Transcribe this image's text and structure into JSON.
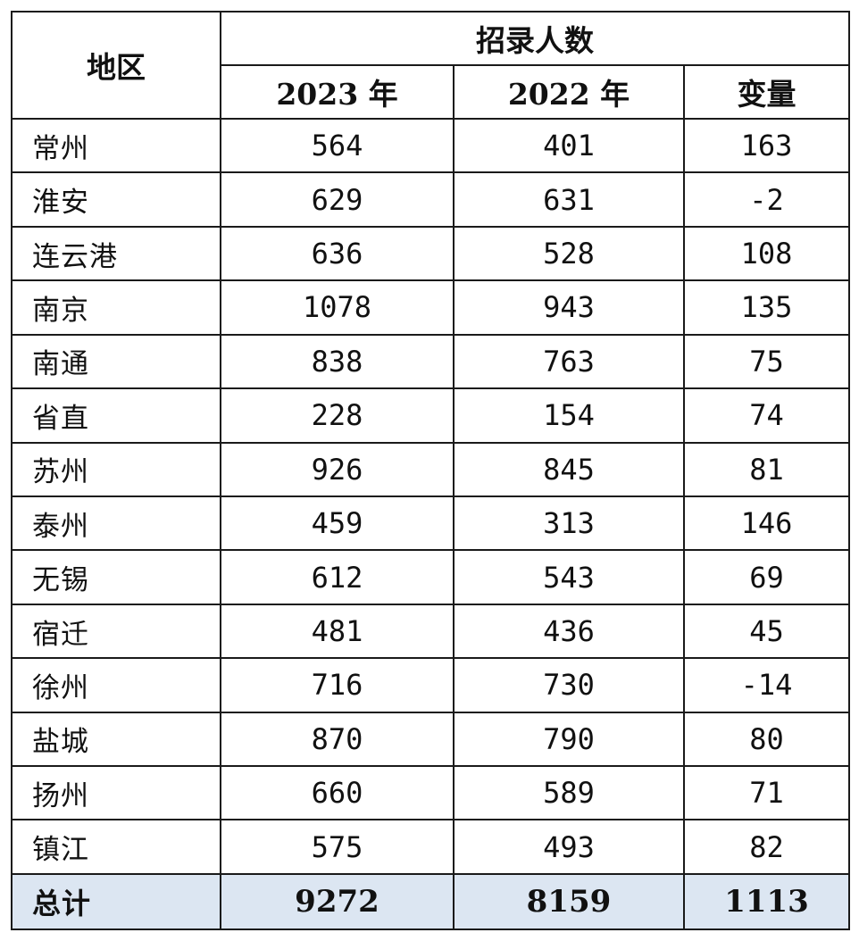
{
  "table": {
    "header": {
      "region": "地区",
      "group": "招录人数",
      "year2023": "2023 年",
      "year2022": "2022 年",
      "change": "变量"
    },
    "rows": [
      {
        "region": "常州",
        "y2023": "564",
        "y2022": "401",
        "change": "163"
      },
      {
        "region": "淮安",
        "y2023": "629",
        "y2022": "631",
        "change": "-2"
      },
      {
        "region": "连云港",
        "y2023": "636",
        "y2022": "528",
        "change": "108"
      },
      {
        "region": "南京",
        "y2023": "1078",
        "y2022": "943",
        "change": "135"
      },
      {
        "region": "南通",
        "y2023": "838",
        "y2022": "763",
        "change": "75"
      },
      {
        "region": "省直",
        "y2023": "228",
        "y2022": "154",
        "change": "74"
      },
      {
        "region": "苏州",
        "y2023": "926",
        "y2022": "845",
        "change": "81"
      },
      {
        "region": "泰州",
        "y2023": "459",
        "y2022": "313",
        "change": "146"
      },
      {
        "region": "无锡",
        "y2023": "612",
        "y2022": "543",
        "change": "69"
      },
      {
        "region": "宿迁",
        "y2023": "481",
        "y2022": "436",
        "change": "45"
      },
      {
        "region": "徐州",
        "y2023": "716",
        "y2022": "730",
        "change": "-14"
      },
      {
        "region": "盐城",
        "y2023": "870",
        "y2022": "790",
        "change": "80"
      },
      {
        "region": "扬州",
        "y2023": "660",
        "y2022": "589",
        "change": "71"
      },
      {
        "region": "镇江",
        "y2023": "575",
        "y2022": "493",
        "change": "82"
      }
    ],
    "total": {
      "region": "总计",
      "y2023": "9272",
      "y2022": "8159",
      "change": "1113"
    }
  },
  "colors": {
    "border": "#1a1a1a",
    "total_row_background": "#dce6f2",
    "text": "#111111"
  }
}
